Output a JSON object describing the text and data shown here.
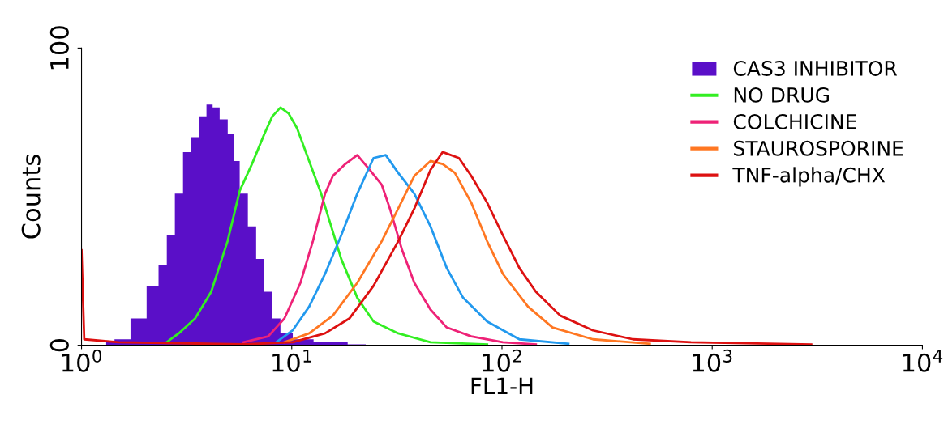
{
  "chart_data": {
    "type": "line",
    "xlabel": "FL1-H",
    "ylabel": "Counts",
    "log": "x",
    "xlim": [
      1,
      10000
    ],
    "xticks": [
      {
        "value": 1,
        "label": "10$^{0}$"
      },
      {
        "value": 10,
        "label": "10$^{1}$"
      },
      {
        "value": 100,
        "label": "10$^{2}$"
      },
      {
        "value": 1000,
        "label": "10$^{3}$"
      },
      {
        "value": 10000,
        "label": "10$^{4}$"
      }
    ],
    "ylim": [
      0,
      100
    ],
    "yticks": [
      0,
      100
    ],
    "grid": false,
    "legend": "top right",
    "series": [
      {
        "name": "CAS3 INHIBITOR",
        "type": "area",
        "color": "#5a0fc8",
        "x": [
          1.31,
          1.56,
          1.86,
          2.22,
          2.43,
          2.66,
          2.9,
          3.18,
          3.47,
          3.79,
          4.07,
          4.34,
          4.74,
          5.18,
          5.41,
          5.9,
          6.47,
          7.07,
          7.73,
          8.44,
          9.23,
          11,
          14.4,
          22.5
        ],
        "values": [
          1,
          2,
          9,
          20,
          27,
          37,
          51,
          65,
          70,
          77,
          81,
          80,
          76,
          71,
          62,
          51,
          40,
          29,
          18,
          9,
          4,
          2,
          1,
          0.3
        ]
      },
      {
        "name": "NO DRUG",
        "color": "#33ee22",
        "x": [
          2.54,
          2.9,
          3.47,
          4.14,
          4.95,
          5.66,
          6.47,
          7.4,
          8.08,
          8.84,
          9.66,
          10.6,
          12.1,
          13.8,
          15.1,
          17.2,
          20.5,
          24.5,
          32.1,
          45.7,
          85
        ],
        "values": [
          1,
          4,
          9,
          18,
          35,
          52,
          61,
          71,
          77,
          80,
          78,
          73,
          62,
          51,
          42,
          29,
          16,
          8,
          4,
          1,
          0.3
        ]
      },
      {
        "name": "COLCHICINE",
        "color": "#ee2277",
        "x": [
          5.9,
          7.73,
          9.23,
          11,
          12.6,
          14.4,
          15.7,
          18,
          20.5,
          23.5,
          26.8,
          29.3,
          33.5,
          38.3,
          45.7,
          54.6,
          71.4,
          101,
          145
        ],
        "values": [
          1,
          3,
          9,
          21,
          35,
          51,
          57,
          61,
          64,
          59,
          54,
          46,
          32,
          21,
          12,
          6,
          3,
          1,
          0.3
        ]
      },
      {
        "color": "#2299ee",
        "x": [
          8.44,
          10.1,
          12.1,
          14.4,
          17.2,
          20.5,
          24.5,
          28,
          32.1,
          38.3,
          45.7,
          54.6,
          65.3,
          85,
          121,
          207
        ],
        "values": [
          1,
          5,
          13,
          24,
          37,
          51,
          63,
          64,
          58,
          51,
          40,
          26,
          16,
          8,
          2,
          0.5
        ]
      },
      {
        "name": "STAUROSPORINE",
        "color": "#ff7722",
        "x": [
          9.23,
          12.1,
          15.7,
          20.5,
          26.8,
          32.1,
          38.3,
          45.7,
          52.2,
          59.7,
          71.4,
          85,
          101,
          133,
          174,
          271,
          505
        ],
        "values": [
          1,
          4,
          10,
          21,
          35,
          46,
          57,
          62,
          61,
          58,
          48,
          35,
          24,
          13,
          6,
          2,
          0.5
        ]
      },
      {
        "name": "TNF-alpha/CHX",
        "color": "#dd1111",
        "x": [
          1,
          1.03,
          1.5,
          5.9,
          10.1,
          14.4,
          18.8,
          24.5,
          32.1,
          38.3,
          45.7,
          52.2,
          62.4,
          71.4,
          85,
          101,
          121,
          145,
          189,
          271,
          420,
          793,
          2960
        ],
        "values": [
          32,
          2,
          1,
          0.3,
          1,
          4,
          9,
          20,
          35,
          46,
          59,
          65,
          63,
          57,
          48,
          37,
          26,
          18,
          10,
          5,
          2,
          1,
          0.3
        ]
      }
    ]
  }
}
